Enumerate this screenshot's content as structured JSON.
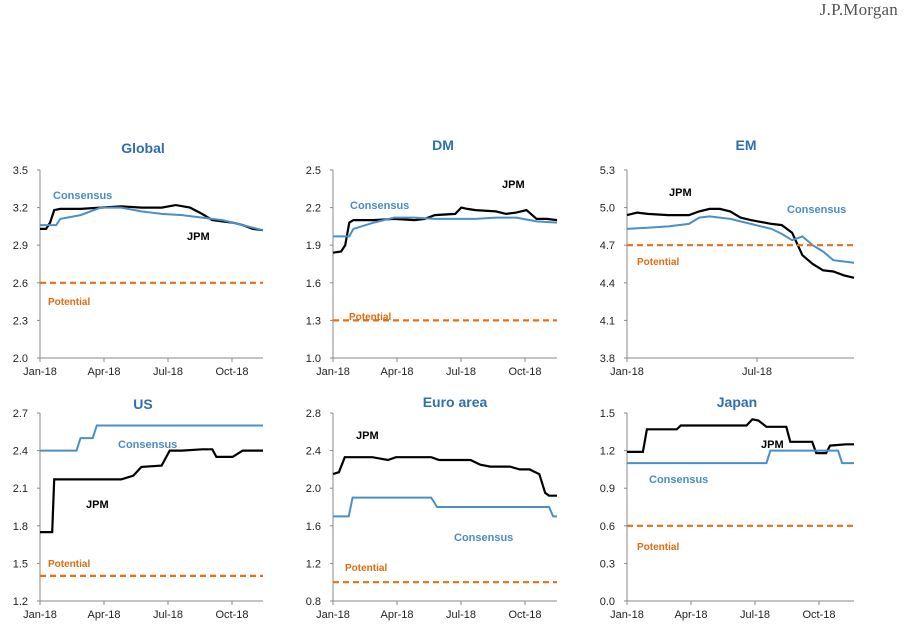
{
  "brand": "J.P.Morgan",
  "colors": {
    "jpm": "#000000",
    "consensus": "#4a90c8",
    "potential": "#e86f12",
    "title": "#2f6fb0"
  },
  "chart_data": [
    {
      "type": "line",
      "title": "Global",
      "ylim": [
        2.0,
        3.5
      ],
      "yticks": [
        "3.5",
        "3.2",
        "2.9",
        "2.6",
        "2.3",
        "2.0"
      ],
      "xticks": [
        "Jan-18",
        "Apr-18",
        "Jul-18",
        "Oct-18"
      ],
      "labels": {
        "jpm": "JPM",
        "consensus": "Consensus",
        "potential": "Potential"
      },
      "series": [
        {
          "name": "JPM",
          "values": [
            [
              0,
              3.03
            ],
            [
              0.3,
              3.03
            ],
            [
              0.5,
              3.08
            ],
            [
              0.7,
              3.18
            ],
            [
              1,
              3.19
            ],
            [
              2,
              3.19
            ],
            [
              3,
              3.2
            ],
            [
              4,
              3.21
            ],
            [
              5,
              3.2
            ],
            [
              6,
              3.2
            ],
            [
              6.7,
              3.22
            ],
            [
              7.4,
              3.2
            ],
            [
              8,
              3.15
            ],
            [
              8.5,
              3.1
            ],
            [
              9,
              3.09
            ],
            [
              9.5,
              3.08
            ],
            [
              10,
              3.06
            ],
            [
              10.5,
              3.03
            ],
            [
              11,
              3.02
            ]
          ]
        },
        {
          "name": "Consensus",
          "values": [
            [
              0,
              3.06
            ],
            [
              0.8,
              3.06
            ],
            [
              1,
              3.11
            ],
            [
              2,
              3.14
            ],
            [
              3,
              3.2
            ],
            [
              4,
              3.2
            ],
            [
              5,
              3.17
            ],
            [
              6,
              3.15
            ],
            [
              7,
              3.14
            ],
            [
              8,
              3.12
            ],
            [
              9,
              3.1
            ],
            [
              10,
              3.06
            ],
            [
              10.5,
              3.04
            ],
            [
              11,
              3.02
            ]
          ]
        },
        {
          "name": "Potential",
          "values": [
            [
              0,
              2.6
            ],
            [
              11,
              2.6
            ]
          ]
        }
      ]
    },
    {
      "type": "line",
      "title": "DM",
      "ylim": [
        1.0,
        2.5
      ],
      "yticks": [
        "2.5",
        "2.2",
        "1.9",
        "1.6",
        "1.3",
        "1.0"
      ],
      "xticks": [
        "Jan-18",
        "Apr-18",
        "Jul-18",
        "Oct-18"
      ],
      "labels": {
        "jpm": "JPM",
        "consensus": "Consensus",
        "potential": "Potential"
      },
      "series": [
        {
          "name": "JPM",
          "values": [
            [
              0,
              1.84
            ],
            [
              0.4,
              1.85
            ],
            [
              0.6,
              1.9
            ],
            [
              0.8,
              2.08
            ],
            [
              1,
              2.1
            ],
            [
              2,
              2.1
            ],
            [
              3,
              2.11
            ],
            [
              4,
              2.1
            ],
            [
              4.5,
              2.11
            ],
            [
              5,
              2.14
            ],
            [
              6,
              2.15
            ],
            [
              6.3,
              2.2
            ],
            [
              6.6,
              2.19
            ],
            [
              7,
              2.18
            ],
            [
              8,
              2.17
            ],
            [
              8.5,
              2.15
            ],
            [
              9,
              2.16
            ],
            [
              9.5,
              2.18
            ],
            [
              10,
              2.11
            ],
            [
              10.5,
              2.11
            ],
            [
              11,
              2.1
            ]
          ]
        },
        {
          "name": "Consensus",
          "values": [
            [
              0,
              1.97
            ],
            [
              0.8,
              1.97
            ],
            [
              1,
              2.03
            ],
            [
              2,
              2.08
            ],
            [
              3,
              2.12
            ],
            [
              4,
              2.12
            ],
            [
              5,
              2.11
            ],
            [
              6,
              2.11
            ],
            [
              7,
              2.11
            ],
            [
              8,
              2.12
            ],
            [
              9,
              2.12
            ],
            [
              10,
              2.09
            ],
            [
              11,
              2.08
            ]
          ]
        },
        {
          "name": "Potential",
          "values": [
            [
              0,
              1.3
            ],
            [
              11,
              1.3
            ]
          ]
        }
      ]
    },
    {
      "type": "line",
      "title": "EM",
      "ylim": [
        3.8,
        5.3
      ],
      "yticks": [
        "5.3",
        "5.0",
        "4.7",
        "4.4",
        "4.1",
        "3.8"
      ],
      "xticks": [
        "Jan-18",
        "Jul-18"
      ],
      "labels": {
        "jpm": "JPM",
        "consensus": "Consensus",
        "potential": "Potential"
      },
      "series": [
        {
          "name": "JPM",
          "values": [
            [
              0,
              4.94
            ],
            [
              0.5,
              4.96
            ],
            [
              1,
              4.95
            ],
            [
              2,
              4.94
            ],
            [
              3,
              4.94
            ],
            [
              3.5,
              4.97
            ],
            [
              4,
              4.99
            ],
            [
              4.5,
              4.99
            ],
            [
              5,
              4.97
            ],
            [
              5.5,
              4.92
            ],
            [
              6,
              4.9
            ],
            [
              7,
              4.87
            ],
            [
              7.5,
              4.86
            ],
            [
              8,
              4.8
            ],
            [
              8.5,
              4.62
            ],
            [
              9,
              4.55
            ],
            [
              9.5,
              4.5
            ],
            [
              10,
              4.49
            ],
            [
              10.5,
              4.46
            ],
            [
              11,
              4.44
            ]
          ]
        },
        {
          "name": "Consensus",
          "values": [
            [
              0,
              4.83
            ],
            [
              1,
              4.84
            ],
            [
              2,
              4.85
            ],
            [
              3,
              4.87
            ],
            [
              3.5,
              4.92
            ],
            [
              4,
              4.93
            ],
            [
              5,
              4.91
            ],
            [
              6,
              4.87
            ],
            [
              7,
              4.83
            ],
            [
              7.5,
              4.79
            ],
            [
              8,
              4.74
            ],
            [
              8.5,
              4.77
            ],
            [
              9,
              4.7
            ],
            [
              9.5,
              4.65
            ],
            [
              10,
              4.58
            ],
            [
              10.5,
              4.57
            ],
            [
              11,
              4.56
            ]
          ]
        },
        {
          "name": "Potential",
          "values": [
            [
              0,
              4.7
            ],
            [
              11,
              4.7
            ]
          ]
        }
      ]
    },
    {
      "type": "line",
      "title": "US",
      "ylim": [
        1.2,
        2.7
      ],
      "yticks": [
        "2.7",
        "2.4",
        "2.1",
        "1.8",
        "1.5",
        "1.2"
      ],
      "xticks": [
        "Jan-18",
        "Apr-18",
        "Jul-18",
        "Oct-18"
      ],
      "labels": {
        "jpm": "JPM",
        "consensus": "Consensus",
        "potential": "Potential"
      },
      "series": [
        {
          "name": "JPM",
          "values": [
            [
              0,
              1.75
            ],
            [
              0.6,
              1.75
            ],
            [
              0.7,
              2.17
            ],
            [
              4,
              2.17
            ],
            [
              4.6,
              2.2
            ],
            [
              5,
              2.27
            ],
            [
              6,
              2.28
            ],
            [
              6.4,
              2.4
            ],
            [
              7,
              2.4
            ],
            [
              8,
              2.41
            ],
            [
              8.5,
              2.41
            ],
            [
              8.7,
              2.35
            ],
            [
              9.5,
              2.35
            ],
            [
              10,
              2.4
            ],
            [
              11,
              2.4
            ]
          ]
        },
        {
          "name": "Consensus",
          "values": [
            [
              0,
              2.4
            ],
            [
              1.8,
              2.4
            ],
            [
              2,
              2.5
            ],
            [
              2.6,
              2.5
            ],
            [
              2.8,
              2.6
            ],
            [
              11,
              2.6
            ]
          ]
        },
        {
          "name": "Potential",
          "values": [
            [
              0,
              1.4
            ],
            [
              11,
              1.4
            ]
          ]
        }
      ]
    },
    {
      "type": "line",
      "title": "Euro area",
      "ylim": [
        0.8,
        2.8
      ],
      "yticks": [
        "2.8",
        "2.4",
        "2.0",
        "1.6",
        "1.2",
        "0.8"
      ],
      "xticks": [
        "Jan-18",
        "Apr-18",
        "Jul-18",
        "Oct-18"
      ],
      "labels": {
        "jpm": "JPM",
        "consensus": "Consensus",
        "potential": "Potential"
      },
      "series": [
        {
          "name": "JPM",
          "values": [
            [
              0,
              2.15
            ],
            [
              0.3,
              2.17
            ],
            [
              0.6,
              2.33
            ],
            [
              2,
              2.33
            ],
            [
              2.8,
              2.3
            ],
            [
              3.2,
              2.33
            ],
            [
              5,
              2.33
            ],
            [
              5.4,
              2.3
            ],
            [
              7,
              2.3
            ],
            [
              7.5,
              2.25
            ],
            [
              8,
              2.23
            ],
            [
              9,
              2.23
            ],
            [
              9.5,
              2.2
            ],
            [
              10,
              2.2
            ],
            [
              10.5,
              2.15
            ],
            [
              10.8,
              1.95
            ],
            [
              11,
              1.92
            ],
            [
              11.4,
              1.92
            ]
          ]
        },
        {
          "name": "Consensus",
          "values": [
            [
              0,
              1.7
            ],
            [
              0.8,
              1.7
            ],
            [
              1,
              1.9
            ],
            [
              5,
              1.9
            ],
            [
              5.3,
              1.8
            ],
            [
              11,
              1.8
            ],
            [
              11.2,
              1.7
            ],
            [
              11.4,
              1.7
            ]
          ]
        },
        {
          "name": "Potential",
          "values": [
            [
              0,
              1.0
            ],
            [
              11.4,
              1.0
            ]
          ]
        }
      ]
    },
    {
      "type": "line",
      "title": "Japan",
      "ylim": [
        0.0,
        1.5
      ],
      "yticks": [
        "1.5",
        "1.2",
        "0.9",
        "0.6",
        "0.3",
        "0.0"
      ],
      "xticks": [
        "Jan-18",
        "Apr-18",
        "Jul-18",
        "Oct-18"
      ],
      "labels": {
        "jpm": "JPM",
        "consensus": "Consensus",
        "potential": "Potential"
      },
      "series": [
        {
          "name": "JPM",
          "values": [
            [
              0,
              1.19
            ],
            [
              0.8,
              1.19
            ],
            [
              1,
              1.37
            ],
            [
              2.5,
              1.37
            ],
            [
              2.7,
              1.4
            ],
            [
              6,
              1.4
            ],
            [
              6.3,
              1.45
            ],
            [
              6.6,
              1.44
            ],
            [
              7,
              1.39
            ],
            [
              8,
              1.39
            ],
            [
              8.2,
              1.27
            ],
            [
              9.3,
              1.27
            ],
            [
              9.5,
              1.18
            ],
            [
              10,
              1.18
            ],
            [
              10.2,
              1.24
            ],
            [
              11,
              1.25
            ],
            [
              11.4,
              1.25
            ]
          ]
        },
        {
          "name": "Consensus",
          "values": [
            [
              0,
              1.1
            ],
            [
              7,
              1.1
            ],
            [
              7.2,
              1.2
            ],
            [
              10.6,
              1.2
            ],
            [
              10.8,
              1.1
            ],
            [
              11.4,
              1.1
            ]
          ]
        },
        {
          "name": "Potential",
          "values": [
            [
              0,
              0.6
            ],
            [
              11.4,
              0.6
            ]
          ]
        }
      ]
    }
  ]
}
